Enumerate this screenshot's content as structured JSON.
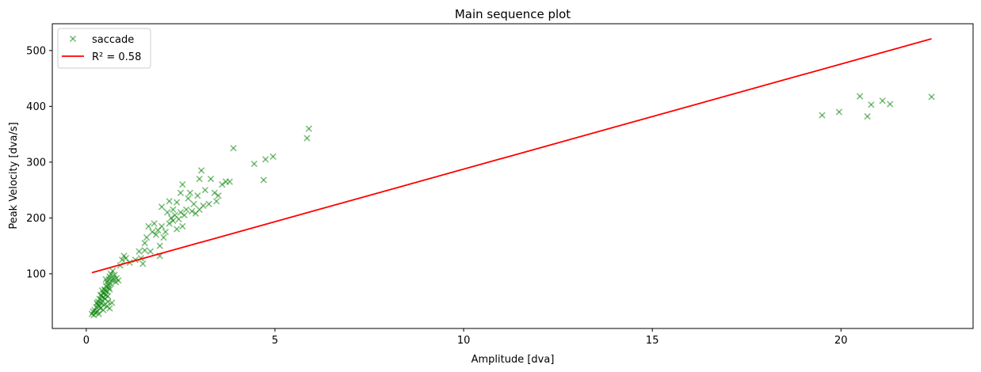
{
  "chart_data": {
    "type": "scatter",
    "title": "Main sequence plot",
    "xlabel": "Amplitude [dva]",
    "ylabel": "Peak Velocity [dva/s]",
    "xlim": [
      -0.9,
      23.5
    ],
    "ylim": [
      2,
      548
    ],
    "xticks": [
      0,
      5,
      10,
      15,
      20
    ],
    "yticks": [
      100,
      200,
      300,
      400,
      500
    ],
    "grid": false,
    "legend_position": "top-left",
    "series": [
      {
        "name": "saccade",
        "kind": "scatter",
        "marker": "x",
        "color": "#008000",
        "opacity": 0.5,
        "points": [
          [
            0.15,
            28
          ],
          [
            0.18,
            32
          ],
          [
            0.2,
            26
          ],
          [
            0.22,
            35
          ],
          [
            0.25,
            30
          ],
          [
            0.27,
            40
          ],
          [
            0.3,
            45
          ],
          [
            0.3,
            33
          ],
          [
            0.32,
            50
          ],
          [
            0.35,
            42
          ],
          [
            0.35,
            55
          ],
          [
            0.37,
            38
          ],
          [
            0.4,
            47
          ],
          [
            0.4,
            60
          ],
          [
            0.42,
            52
          ],
          [
            0.45,
            58
          ],
          [
            0.45,
            65
          ],
          [
            0.47,
            44
          ],
          [
            0.5,
            70
          ],
          [
            0.5,
            55
          ],
          [
            0.52,
            62
          ],
          [
            0.52,
            78
          ],
          [
            0.55,
            68
          ],
          [
            0.55,
            85
          ],
          [
            0.57,
            60
          ],
          [
            0.6,
            75
          ],
          [
            0.6,
            90
          ],
          [
            0.62,
            72
          ],
          [
            0.62,
            95
          ],
          [
            0.65,
            82
          ],
          [
            0.65,
            100
          ],
          [
            0.68,
            88
          ],
          [
            0.7,
            105
          ],
          [
            0.72,
            92
          ],
          [
            0.75,
            98
          ],
          [
            0.78,
            85
          ],
          [
            0.8,
            92
          ],
          [
            0.85,
            88
          ],
          [
            0.45,
            35
          ],
          [
            0.55,
            42
          ],
          [
            0.58,
            50
          ],
          [
            0.28,
            48
          ],
          [
            0.38,
            62
          ],
          [
            0.48,
            72
          ],
          [
            0.33,
            28
          ],
          [
            0.62,
            38
          ],
          [
            0.68,
            48
          ],
          [
            0.42,
            70
          ],
          [
            0.52,
            90
          ],
          [
            0.58,
            80
          ],
          [
            0.9,
            115
          ],
          [
            0.95,
            125
          ],
          [
            1.0,
            132
          ],
          [
            1.05,
            128
          ],
          [
            1.15,
            120
          ],
          [
            1.3,
            125
          ],
          [
            1.4,
            140
          ],
          [
            1.45,
            128
          ],
          [
            1.5,
            118
          ],
          [
            1.55,
            142
          ],
          [
            1.55,
            155
          ],
          [
            1.6,
            165
          ],
          [
            1.65,
            185
          ],
          [
            1.7,
            140
          ],
          [
            1.75,
            175
          ],
          [
            1.8,
            190
          ],
          [
            1.85,
            170
          ],
          [
            1.9,
            178
          ],
          [
            1.95,
            132
          ],
          [
            1.95,
            150
          ],
          [
            2.0,
            185
          ],
          [
            2.0,
            220
          ],
          [
            2.05,
            165
          ],
          [
            2.1,
            175
          ],
          [
            2.15,
            210
          ],
          [
            2.2,
            190
          ],
          [
            2.2,
            230
          ],
          [
            2.25,
            200
          ],
          [
            2.3,
            215
          ],
          [
            2.3,
            195
          ],
          [
            2.35,
            205
          ],
          [
            2.4,
            180
          ],
          [
            2.4,
            228
          ],
          [
            2.45,
            198
          ],
          [
            2.5,
            210
          ],
          [
            2.5,
            245
          ],
          [
            2.55,
            185
          ],
          [
            2.55,
            260
          ],
          [
            2.6,
            205
          ],
          [
            2.65,
            215
          ],
          [
            2.7,
            235
          ],
          [
            2.75,
            245
          ],
          [
            2.8,
            212
          ],
          [
            2.85,
            225
          ],
          [
            2.9,
            208
          ],
          [
            2.95,
            240
          ],
          [
            3.0,
            215
          ],
          [
            3.0,
            270
          ],
          [
            3.05,
            285
          ],
          [
            3.1,
            222
          ],
          [
            3.15,
            250
          ],
          [
            3.25,
            225
          ],
          [
            3.3,
            270
          ],
          [
            3.4,
            245
          ],
          [
            3.45,
            230
          ],
          [
            3.5,
            240
          ],
          [
            3.6,
            260
          ],
          [
            3.7,
            265
          ],
          [
            3.8,
            265
          ],
          [
            3.9,
            325
          ],
          [
            4.45,
            297
          ],
          [
            4.7,
            268
          ],
          [
            4.75,
            305
          ],
          [
            4.95,
            310
          ],
          [
            5.85,
            343
          ],
          [
            5.9,
            360
          ],
          [
            19.5,
            384
          ],
          [
            19.95,
            390
          ],
          [
            20.5,
            418
          ],
          [
            20.7,
            382
          ],
          [
            20.8,
            403
          ],
          [
            21.1,
            410
          ],
          [
            21.3,
            404
          ],
          [
            22.4,
            417
          ]
        ]
      },
      {
        "name": "R² = 0.58",
        "kind": "line",
        "color": "#ff0000",
        "points": [
          [
            0.15,
            102
          ],
          [
            22.4,
            521
          ]
        ]
      }
    ]
  }
}
